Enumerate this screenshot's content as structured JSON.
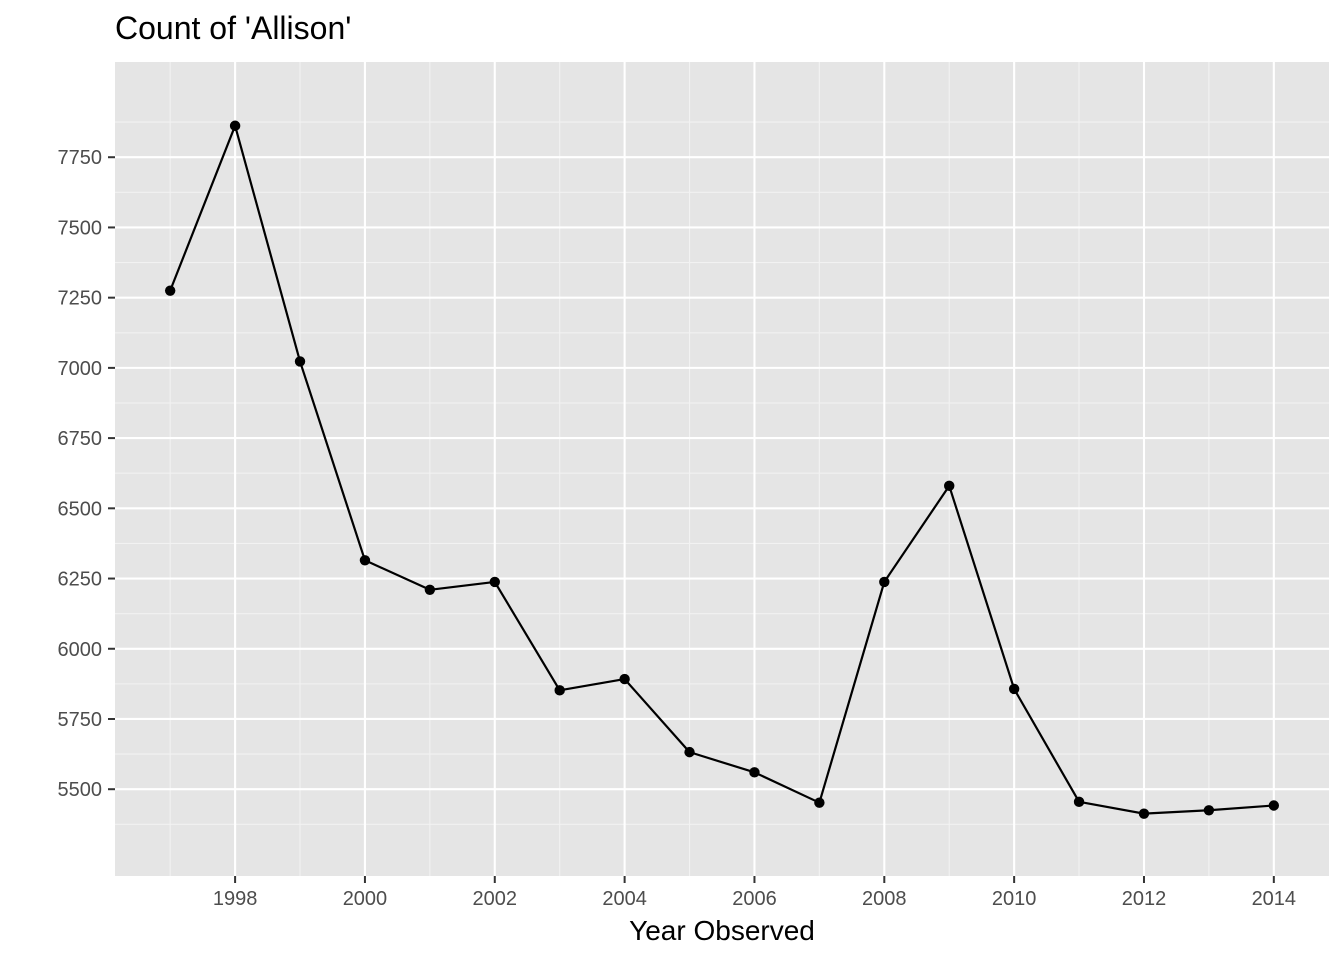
{
  "chart_data": {
    "type": "line",
    "title": "Count of 'Allison'",
    "xlabel": "Year Observed",
    "ylabel": "",
    "x": [
      1997,
      1998,
      1999,
      2000,
      2001,
      2002,
      2003,
      2004,
      2005,
      2006,
      2007,
      2008,
      2009,
      2010,
      2011,
      2012,
      2013,
      2014
    ],
    "series": [
      {
        "values": [
          7275,
          7862,
          7023,
          6315,
          6210,
          6238,
          5852,
          5892,
          5632,
          5560,
          5452,
          6238,
          6580,
          5857,
          5455,
          5413,
          5425,
          5442
        ]
      }
    ],
    "x_ticks": [
      "1998",
      "2000",
      "2002",
      "2004",
      "2006",
      "2008",
      "2010",
      "2012",
      "2014"
    ],
    "y_ticks": [
      "5500",
      "5750",
      "6000",
      "6250",
      "6500",
      "6750",
      "7000",
      "7250",
      "7500",
      "7750"
    ],
    "xlim": [
      1996.15,
      2014.85
    ],
    "ylim": [
      5191,
      8089
    ],
    "grid": true,
    "legend": "none",
    "colors": {
      "panel_background": "#e5e5e5",
      "grid_major": "#ffffff",
      "grid_minor": "#f2f2f2",
      "line": "#000000",
      "point": "#000000",
      "tick_label": "#4d4d4d"
    }
  }
}
